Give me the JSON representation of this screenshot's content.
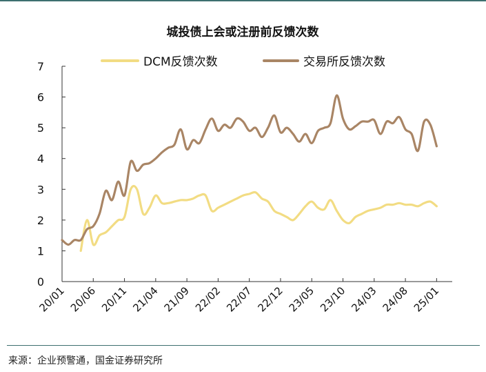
{
  "source_note": "来源：企业预警通，国金证券研究所",
  "colors": {
    "dcm": "#f2dc83",
    "exchange": "#a98565",
    "axis": "#333333",
    "rule": "#3d6f6f"
  },
  "chart_data": {
    "type": "line",
    "title": "城投债上会或注册前反馈次数",
    "xlabel": "",
    "ylabel": "",
    "ylim": [
      0,
      7
    ],
    "yticks": [
      0,
      1,
      2,
      3,
      4,
      5,
      6,
      7
    ],
    "grid": false,
    "legend_position": "top",
    "x_tick_labels": [
      "20/01",
      "20/06",
      "20/11",
      "21/04",
      "21/09",
      "22/02",
      "22/07",
      "22/12",
      "23/05",
      "23/10",
      "24/03",
      "24/08",
      "25/01"
    ],
    "x_tick_positions_month_index": [
      0,
      5,
      10,
      15,
      20,
      25,
      30,
      35,
      40,
      45,
      50,
      55,
      60
    ],
    "x_range_month_index": [
      0,
      62.5
    ],
    "series": [
      {
        "name": "DCM反馈次数",
        "color": "#f2dc83",
        "points": [
          [
            3.0,
            1.0
          ],
          [
            4.0,
            2.0
          ],
          [
            5.0,
            1.2
          ],
          [
            6.0,
            1.5
          ],
          [
            7.0,
            1.6
          ],
          [
            8.0,
            1.8
          ],
          [
            9.0,
            2.0
          ],
          [
            10.0,
            2.1
          ],
          [
            11.0,
            3.0
          ],
          [
            12.0,
            3.0
          ],
          [
            13.0,
            2.2
          ],
          [
            14.0,
            2.4
          ],
          [
            15.0,
            2.8
          ],
          [
            16.0,
            2.55
          ],
          [
            17.0,
            2.55
          ],
          [
            18.0,
            2.6
          ],
          [
            19.0,
            2.65
          ],
          [
            20.0,
            2.65
          ],
          [
            21.0,
            2.7
          ],
          [
            22.0,
            2.8
          ],
          [
            23.0,
            2.8
          ],
          [
            24.0,
            2.3
          ],
          [
            25.0,
            2.4
          ],
          [
            26.0,
            2.5
          ],
          [
            27.0,
            2.6
          ],
          [
            28.0,
            2.7
          ],
          [
            29.0,
            2.8
          ],
          [
            30.0,
            2.85
          ],
          [
            31.0,
            2.9
          ],
          [
            32.0,
            2.7
          ],
          [
            33.0,
            2.6
          ],
          [
            34.0,
            2.3
          ],
          [
            35.0,
            2.2
          ],
          [
            36.0,
            2.1
          ],
          [
            37.0,
            2.0
          ],
          [
            38.0,
            2.2
          ],
          [
            39.0,
            2.45
          ],
          [
            40.0,
            2.6
          ],
          [
            41.0,
            2.4
          ],
          [
            42.0,
            2.35
          ],
          [
            43.0,
            2.65
          ],
          [
            44.0,
            2.3
          ],
          [
            45.0,
            2.0
          ],
          [
            46.0,
            1.9
          ],
          [
            47.0,
            2.1
          ],
          [
            48.0,
            2.2
          ],
          [
            49.0,
            2.3
          ],
          [
            50.0,
            2.35
          ],
          [
            51.0,
            2.4
          ],
          [
            52.0,
            2.5
          ],
          [
            53.0,
            2.5
          ],
          [
            54.0,
            2.55
          ],
          [
            55.0,
            2.5
          ],
          [
            56.0,
            2.5
          ],
          [
            57.0,
            2.45
          ],
          [
            58.0,
            2.55
          ],
          [
            59.0,
            2.6
          ],
          [
            60.0,
            2.45
          ]
        ]
      },
      {
        "name": "交易所反馈次数",
        "color": "#a98565",
        "points": [
          [
            0.0,
            1.35
          ],
          [
            1.0,
            1.2
          ],
          [
            2.0,
            1.35
          ],
          [
            3.0,
            1.35
          ],
          [
            4.0,
            1.7
          ],
          [
            5.0,
            1.8
          ],
          [
            6.0,
            2.2
          ],
          [
            7.0,
            2.95
          ],
          [
            8.0,
            2.65
          ],
          [
            9.0,
            3.25
          ],
          [
            10.0,
            2.8
          ],
          [
            11.0,
            3.9
          ],
          [
            12.0,
            3.6
          ],
          [
            13.0,
            3.8
          ],
          [
            14.0,
            3.85
          ],
          [
            15.0,
            4.0
          ],
          [
            16.0,
            4.2
          ],
          [
            17.0,
            4.35
          ],
          [
            18.0,
            4.45
          ],
          [
            19.0,
            4.95
          ],
          [
            20.0,
            4.3
          ],
          [
            21.0,
            4.6
          ],
          [
            22.0,
            4.5
          ],
          [
            23.0,
            4.95
          ],
          [
            24.0,
            5.3
          ],
          [
            25.0,
            4.9
          ],
          [
            26.0,
            5.1
          ],
          [
            27.0,
            5.0
          ],
          [
            28.0,
            5.3
          ],
          [
            29.0,
            5.2
          ],
          [
            30.0,
            4.9
          ],
          [
            31.0,
            5.0
          ],
          [
            32.0,
            4.7
          ],
          [
            33.0,
            5.0
          ],
          [
            34.0,
            5.4
          ],
          [
            35.0,
            4.85
          ],
          [
            36.0,
            5.0
          ],
          [
            37.0,
            4.8
          ],
          [
            38.0,
            4.55
          ],
          [
            39.0,
            4.8
          ],
          [
            40.0,
            4.5
          ],
          [
            41.0,
            4.9
          ],
          [
            42.0,
            5.0
          ],
          [
            43.0,
            5.15
          ],
          [
            44.0,
            6.05
          ],
          [
            45.0,
            5.3
          ],
          [
            46.0,
            4.95
          ],
          [
            47.0,
            5.05
          ],
          [
            48.0,
            5.2
          ],
          [
            49.0,
            5.2
          ],
          [
            50.0,
            5.25
          ],
          [
            51.0,
            4.8
          ],
          [
            52.0,
            5.2
          ],
          [
            53.0,
            5.15
          ],
          [
            54.0,
            5.35
          ],
          [
            55.0,
            4.95
          ],
          [
            56.0,
            4.8
          ],
          [
            57.0,
            4.25
          ],
          [
            58.0,
            5.2
          ],
          [
            59.0,
            5.1
          ],
          [
            60.0,
            4.4
          ]
        ]
      }
    ]
  }
}
